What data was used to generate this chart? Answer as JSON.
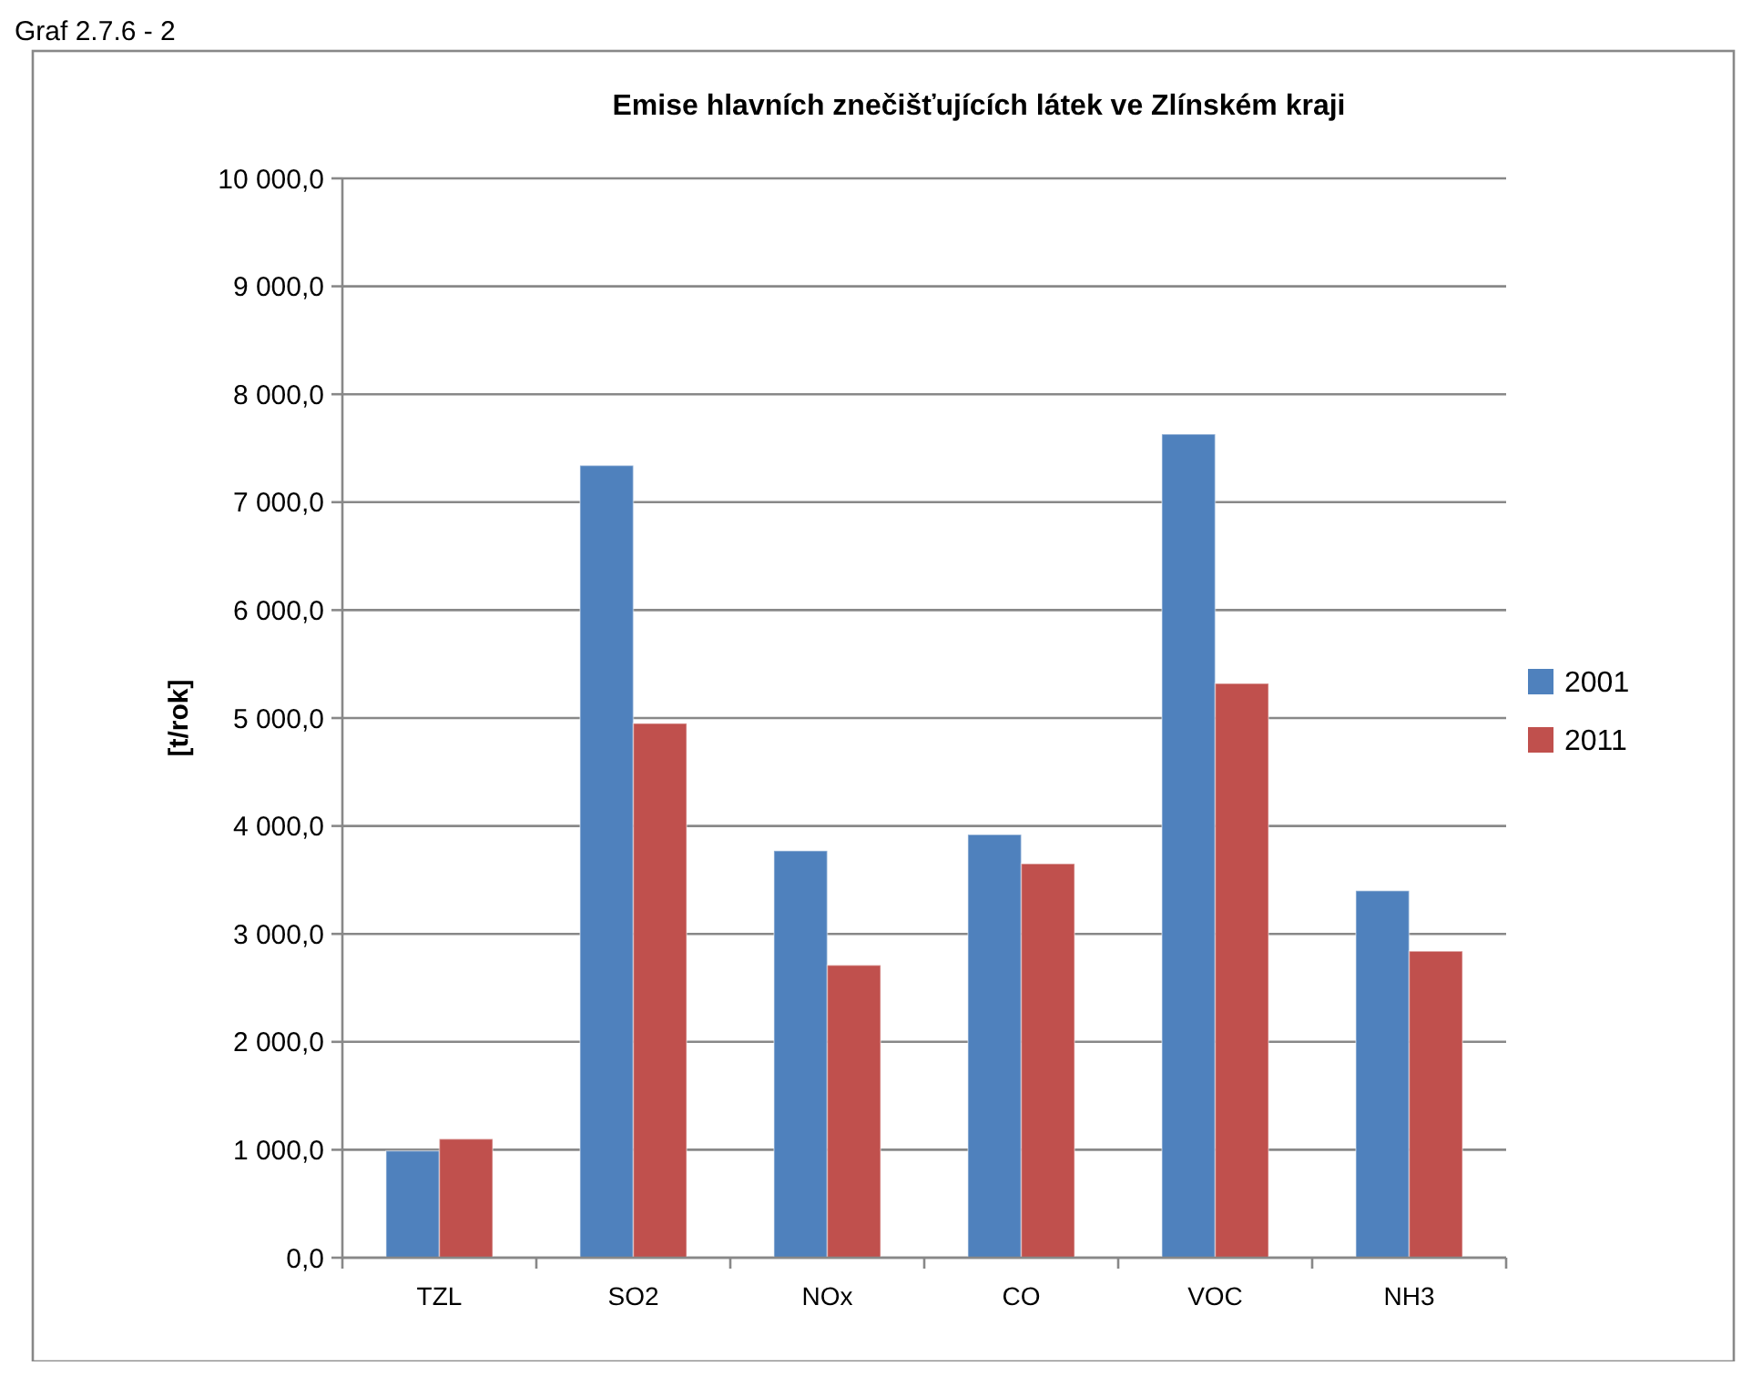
{
  "chart_data": {
    "type": "bar",
    "title": "Emise hlavních znečišťujících látek ve Zlínském kraji",
    "ylabel": "[t/rok]",
    "annotations": [
      "Graf 2.7.6 - 2"
    ],
    "categories": [
      "TZL",
      "SO2",
      "NOx",
      "CO",
      "VOC",
      "NH3"
    ],
    "series": [
      {
        "name": "2001",
        "color": "#4f81bd",
        "values": [
          990,
          7340,
          3770,
          3920,
          7630,
          3400
        ]
      },
      {
        "name": "2011",
        "color": "#c0504d",
        "values": [
          1100,
          4950,
          2710,
          3650,
          5320,
          2840
        ]
      }
    ],
    "ylim": [
      0,
      10000
    ],
    "yticks": [
      {
        "value": 0,
        "label": "0,0"
      },
      {
        "value": 1000,
        "label": "1 000,0"
      },
      {
        "value": 2000,
        "label": "2 000,0"
      },
      {
        "value": 3000,
        "label": "3 000,0"
      },
      {
        "value": 4000,
        "label": "4 000,0"
      },
      {
        "value": 5000,
        "label": "5 000,0"
      },
      {
        "value": 6000,
        "label": "6 000,0"
      },
      {
        "value": 7000,
        "label": "7 000,0"
      },
      {
        "value": 8000,
        "label": "8 000,0"
      },
      {
        "value": 9000,
        "label": "9 000,0"
      },
      {
        "value": 10000,
        "label": "10 000,0"
      }
    ],
    "grid": "y",
    "legend": "right"
  }
}
